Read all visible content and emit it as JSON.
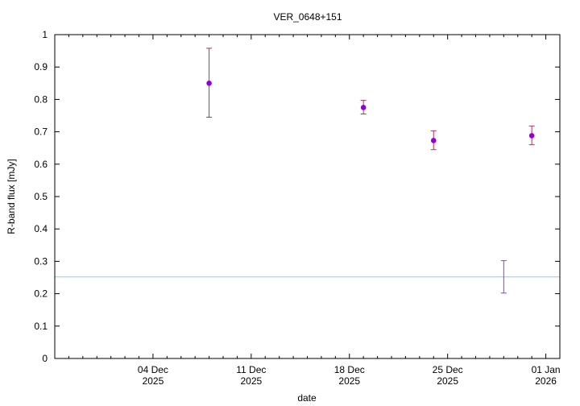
{
  "chart_data": {
    "type": "scatter",
    "title": "VER_0648+151",
    "xlabel": "date",
    "ylabel": "R-band flux [mJy]",
    "xlim": [
      "2025-11-27",
      "2026-01-02"
    ],
    "ylim": [
      0,
      1
    ],
    "y_ticks": [
      "0",
      "0.1",
      "0.2",
      "0.3",
      "0.4",
      "0.5",
      "0.6",
      "0.7",
      "0.8",
      "0.9",
      "1"
    ],
    "x_ticks": [
      {
        "date": "2025-12-04",
        "line1": "04 Dec",
        "line2": "2025"
      },
      {
        "date": "2025-12-11",
        "line1": "11 Dec",
        "line2": "2025"
      },
      {
        "date": "2025-12-18",
        "line1": "18 Dec",
        "line2": "2025"
      },
      {
        "date": "2025-12-25",
        "line1": "25 Dec",
        "line2": "2025"
      },
      {
        "date": "2026-01-01",
        "line1": "01 Jan",
        "line2": "2026"
      }
    ],
    "grid": false,
    "legend": "none",
    "series": [
      {
        "color": "#9400d3",
        "errorbar_color": "#b0306a",
        "points": [
          {
            "date": "2025-12-08",
            "y": 0.85,
            "yerr_low": 0.745,
            "yerr_high": 0.958
          },
          {
            "date": "2025-12-19",
            "y": 0.775,
            "yerr_low": 0.755,
            "yerr_high": 0.797
          },
          {
            "date": "2025-12-24",
            "y": 0.673,
            "yerr_low": 0.645,
            "yerr_high": 0.703
          },
          {
            "date": "2025-12-31",
            "y": 0.688,
            "yerr_low": 0.66,
            "yerr_high": 0.718
          }
        ]
      },
      {
        "color": "#9b30ff",
        "marker": "none",
        "points": [
          {
            "date": "2025-12-29",
            "y": null,
            "yerr_low": 0.202,
            "yerr_high": 0.302
          }
        ]
      }
    ],
    "reference_line": {
      "y": 0.252,
      "color": "#87ceeb"
    }
  }
}
